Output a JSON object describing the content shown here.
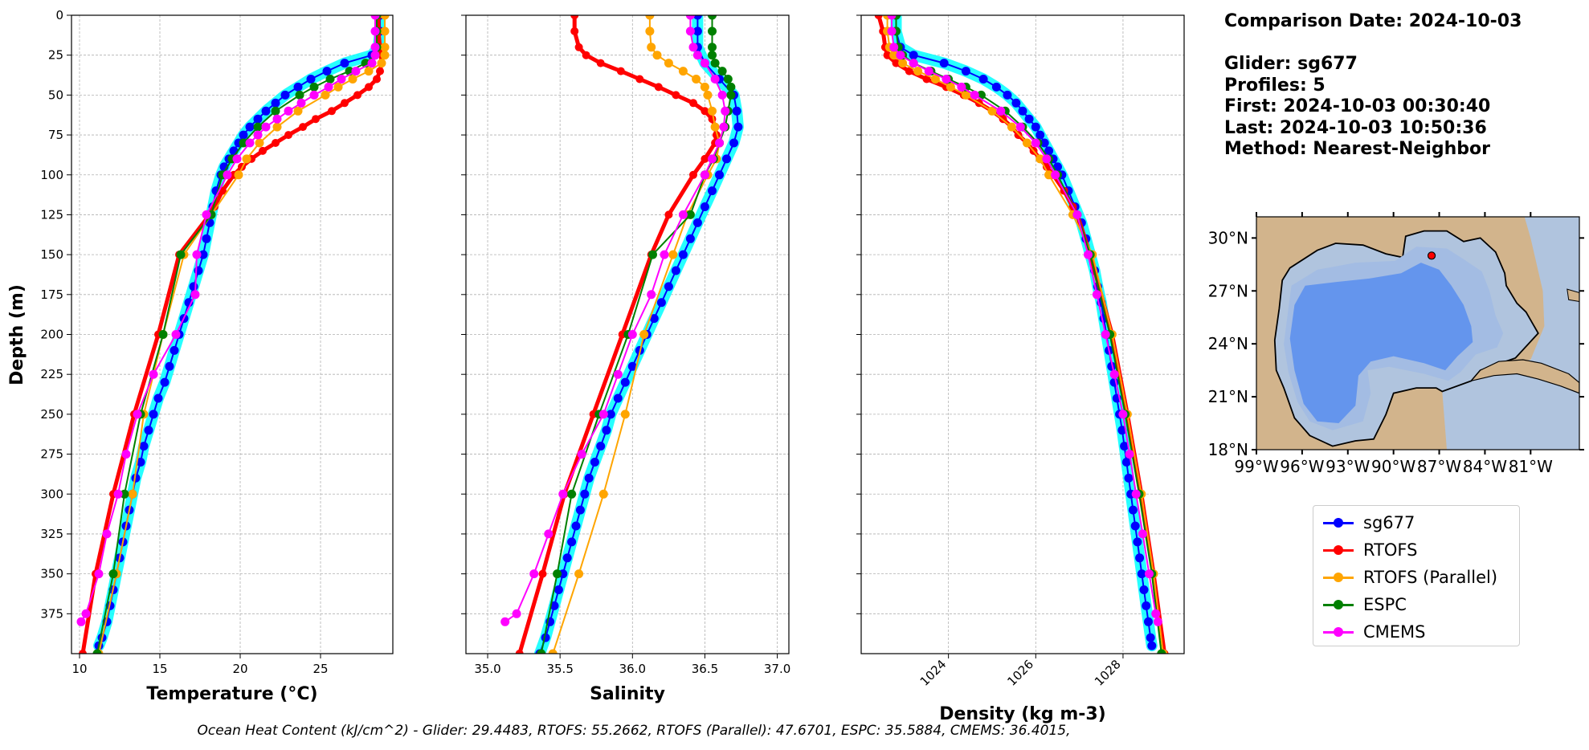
{
  "info": {
    "comparison_date": "Comparison Date: 2024-10-03",
    "glider": "Glider: sg677",
    "profiles": "Profiles: 5",
    "first": "First: 2024-10-03 00:30:40",
    "last": "Last: 2024-10-03 10:50:36",
    "method": "Method: Nearest-Neighbor"
  },
  "footer": {
    "ohc": "Ocean Heat Content (kJ/cm^2) - Glider: 29.4483,  RTOFS: 55.2662,  RTOFS (Parallel): 47.6701,  ESPC: 35.5884,  CMEMS: 36.4015,"
  },
  "legend": [
    {
      "label": "sg677",
      "color": "#0000ff"
    },
    {
      "label": "RTOFS",
      "color": "#ff0000"
    },
    {
      "label": "RTOFS (Parallel)",
      "color": "#ffa500"
    },
    {
      "label": "ESPC",
      "color": "#008000"
    },
    {
      "label": "CMEMS",
      "color": "#ff00ff"
    }
  ],
  "map": {
    "lat_labels": [
      "30°N",
      "27°N",
      "24°N",
      "21°N",
      "18°N"
    ],
    "lon_labels": [
      "99°W",
      "96°W",
      "93°W",
      "90°W",
      "87°W",
      "84°W",
      "81°W"
    ],
    "glider_position": {
      "lon": -87.5,
      "lat": 29.0
    },
    "colors": {
      "land": "#d2b48c",
      "shelf": "#b0c4de",
      "slope": "#a3bce3",
      "deep": "#6495ed"
    }
  },
  "chart_data": [
    {
      "type": "line",
      "xlabel": "Temperature (°C)",
      "ylabel": "Depth (m)",
      "xlim": [
        9.5,
        29.5
      ],
      "ylim": [
        400,
        0
      ],
      "xticks": [
        10,
        15,
        20,
        25
      ],
      "yticks": [
        0,
        25,
        50,
        75,
        100,
        125,
        150,
        175,
        200,
        225,
        250,
        275,
        300,
        325,
        350,
        375
      ],
      "grid": true,
      "series": [
        {
          "name": "sg677",
          "color": "#0000ff",
          "depth": [
            0,
            10,
            20,
            25,
            30,
            35,
            40,
            45,
            50,
            55,
            60,
            65,
            70,
            75,
            80,
            85,
            90,
            95,
            100,
            110,
            120,
            130,
            140,
            150,
            160,
            170,
            180,
            190,
            200,
            210,
            220,
            230,
            240,
            250,
            260,
            270,
            280,
            290,
            300,
            310,
            320,
            330,
            340,
            350,
            360,
            370,
            380,
            390,
            395
          ],
          "values": [
            28.7,
            28.7,
            28.6,
            28.2,
            26.5,
            25.4,
            24.4,
            23.6,
            22.8,
            22.2,
            21.6,
            21.1,
            20.6,
            20.2,
            19.9,
            19.6,
            19.3,
            19.0,
            18.8,
            18.5,
            18.3,
            18.1,
            17.9,
            17.7,
            17.4,
            17.1,
            16.8,
            16.5,
            16.2,
            15.9,
            15.6,
            15.3,
            14.9,
            14.6,
            14.3,
            14.0,
            13.8,
            13.5,
            13.3,
            13.1,
            12.9,
            12.7,
            12.5,
            12.3,
            12.1,
            11.9,
            11.7,
            11.4,
            11.2
          ]
        },
        {
          "name": "RTOFS",
          "color": "#ff0000",
          "depth": [
            0,
            10,
            20,
            30,
            35,
            40,
            45,
            50,
            55,
            60,
            65,
            70,
            75,
            80,
            85,
            90,
            95,
            100,
            110,
            120,
            125,
            150,
            200,
            250,
            300,
            350,
            400
          ],
          "values": [
            28.6,
            28.6,
            28.7,
            28.8,
            28.7,
            28.5,
            28.0,
            27.3,
            26.5,
            25.7,
            24.7,
            23.9,
            23.0,
            22.2,
            21.4,
            20.7,
            20.1,
            19.6,
            18.9,
            18.4,
            18.1,
            16.2,
            14.9,
            13.4,
            12.1,
            11.0,
            10.2
          ]
        },
        {
          "name": "RTOFS (Parallel)",
          "color": "#ffa500",
          "depth": [
            0,
            10,
            20,
            25,
            30,
            35,
            40,
            45,
            50,
            60,
            70,
            80,
            90,
            100,
            125,
            150,
            200,
            250,
            300,
            350,
            400
          ],
          "values": [
            29.0,
            29.0,
            29.0,
            29.0,
            28.8,
            28.0,
            27.0,
            26.1,
            25.3,
            23.6,
            22.3,
            21.2,
            20.4,
            19.9,
            18.2,
            16.5,
            15.2,
            14.0,
            13.3,
            12.3,
            11.2
          ]
        },
        {
          "name": "ESPC",
          "color": "#008000",
          "depth": [
            0,
            10,
            20,
            25,
            30,
            35,
            40,
            45,
            50,
            60,
            70,
            80,
            90,
            100,
            125,
            150,
            200,
            250,
            300,
            350,
            400
          ],
          "values": [
            28.5,
            28.5,
            28.5,
            28.4,
            27.8,
            26.8,
            25.6,
            24.6,
            23.7,
            22.2,
            21.1,
            20.2,
            19.5,
            18.9,
            18.2,
            16.3,
            15.2,
            13.8,
            12.8,
            12.1,
            11.1
          ]
        },
        {
          "name": "CMEMS",
          "color": "#ff00ff",
          "depth": [
            0,
            10,
            20,
            25,
            30,
            35,
            40,
            45,
            50,
            55,
            60,
            65,
            70,
            75,
            80,
            90,
            100,
            125,
            150,
            175,
            200,
            225,
            250,
            275,
            300,
            325,
            350,
            375,
            380
          ],
          "values": [
            28.4,
            28.4,
            28.4,
            28.4,
            28.2,
            27.2,
            26.3,
            25.5,
            24.6,
            23.8,
            23.0,
            22.3,
            21.6,
            21.1,
            20.6,
            19.8,
            19.2,
            17.9,
            17.3,
            17.2,
            16.0,
            14.6,
            13.6,
            12.9,
            12.4,
            11.7,
            11.2,
            10.4,
            10.1
          ]
        }
      ]
    },
    {
      "type": "line",
      "xlabel": "Salinity",
      "xlim": [
        34.85,
        37.08
      ],
      "ylim": [
        400,
        0
      ],
      "xticks": [
        35.0,
        35.5,
        36.0,
        36.5,
        37.0
      ],
      "grid": true,
      "series": [
        {
          "name": "sg677",
          "color": "#0000ff",
          "depth": [
            0,
            10,
            20,
            30,
            40,
            50,
            60,
            70,
            80,
            90,
            100,
            110,
            120,
            130,
            140,
            150,
            160,
            170,
            180,
            190,
            200,
            210,
            220,
            230,
            240,
            250,
            260,
            270,
            280,
            290,
            300,
            310,
            320,
            330,
            340,
            350,
            360,
            370,
            380,
            390,
            400
          ],
          "values": [
            36.45,
            36.45,
            36.45,
            36.5,
            36.6,
            36.7,
            36.72,
            36.73,
            36.7,
            36.65,
            36.6,
            36.55,
            36.5,
            36.45,
            36.4,
            36.35,
            36.3,
            36.25,
            36.2,
            36.15,
            36.1,
            36.05,
            36.0,
            35.95,
            35.9,
            35.85,
            35.82,
            35.78,
            35.74,
            35.7,
            35.67,
            35.64,
            35.61,
            35.58,
            35.55,
            35.52,
            35.49,
            35.46,
            35.43,
            35.4,
            35.36
          ]
        },
        {
          "name": "RTOFS",
          "color": "#ff0000",
          "depth": [
            0,
            10,
            20,
            25,
            30,
            35,
            40,
            45,
            50,
            55,
            60,
            65,
            70,
            75,
            80,
            90,
            100,
            125,
            150,
            200,
            250,
            300,
            350,
            400
          ],
          "values": [
            35.6,
            35.6,
            35.63,
            35.68,
            35.78,
            35.92,
            36.05,
            36.18,
            36.3,
            36.42,
            36.5,
            36.55,
            36.57,
            36.58,
            36.57,
            36.5,
            36.42,
            36.25,
            36.13,
            35.93,
            35.73,
            35.53,
            35.38,
            35.22
          ]
        },
        {
          "name": "RTOFS (Parallel)",
          "color": "#ffa500",
          "depth": [
            0,
            10,
            20,
            25,
            30,
            35,
            40,
            45,
            50,
            60,
            70,
            80,
            90,
            100,
            125,
            150,
            200,
            250,
            300,
            350,
            400
          ],
          "values": [
            36.12,
            36.12,
            36.13,
            36.17,
            36.25,
            36.35,
            36.44,
            36.5,
            36.52,
            36.55,
            36.57,
            36.6,
            36.58,
            36.52,
            36.38,
            36.28,
            36.08,
            35.95,
            35.8,
            35.63,
            35.45
          ]
        },
        {
          "name": "ESPC",
          "color": "#008000",
          "depth": [
            0,
            10,
            20,
            25,
            30,
            35,
            40,
            45,
            50,
            60,
            70,
            80,
            90,
            100,
            125,
            150,
            200,
            250,
            300,
            350,
            400
          ],
          "values": [
            36.55,
            36.55,
            36.55,
            36.55,
            36.57,
            36.62,
            36.66,
            36.68,
            36.68,
            36.66,
            36.64,
            36.6,
            36.56,
            36.5,
            36.4,
            36.14,
            35.97,
            35.77,
            35.58,
            35.48,
            35.37
          ]
        },
        {
          "name": "CMEMS",
          "color": "#ff00ff",
          "depth": [
            0,
            10,
            20,
            25,
            30,
            40,
            50,
            60,
            70,
            80,
            90,
            100,
            125,
            150,
            175,
            200,
            225,
            250,
            275,
            300,
            325,
            350,
            375,
            380
          ],
          "values": [
            36.4,
            36.4,
            36.42,
            36.45,
            36.5,
            36.57,
            36.62,
            36.64,
            36.63,
            36.6,
            36.55,
            36.5,
            36.35,
            36.22,
            36.13,
            36.0,
            35.9,
            35.8,
            35.65,
            35.52,
            35.42,
            35.32,
            35.2,
            35.12
          ]
        }
      ]
    },
    {
      "type": "line",
      "xlabel": "Density (kg m-3)",
      "xlim": [
        1022.0,
        1029.4
      ],
      "ylim": [
        400,
        0
      ],
      "xticks": [
        1024,
        1026,
        1028
      ],
      "grid": true,
      "series": [
        {
          "name": "sg677",
          "color": "#0000ff",
          "depth": [
            0,
            10,
            20,
            25,
            30,
            35,
            40,
            45,
            50,
            55,
            60,
            65,
            70,
            75,
            80,
            85,
            90,
            95,
            100,
            110,
            120,
            130,
            140,
            150,
            160,
            170,
            180,
            190,
            200,
            210,
            220,
            230,
            240,
            250,
            260,
            270,
            280,
            290,
            300,
            310,
            320,
            330,
            340,
            350,
            360,
            370,
            380,
            390,
            395
          ],
          "values": [
            1022.8,
            1022.8,
            1022.9,
            1023.2,
            1023.9,
            1024.4,
            1024.8,
            1025.1,
            1025.35,
            1025.55,
            1025.7,
            1025.85,
            1026.0,
            1026.1,
            1026.2,
            1026.3,
            1026.4,
            1026.5,
            1026.6,
            1026.75,
            1026.9,
            1027.05,
            1027.15,
            1027.25,
            1027.35,
            1027.42,
            1027.5,
            1027.56,
            1027.62,
            1027.68,
            1027.74,
            1027.8,
            1027.86,
            1027.92,
            1027.98,
            1028.03,
            1028.08,
            1028.13,
            1028.18,
            1028.23,
            1028.28,
            1028.33,
            1028.38,
            1028.43,
            1028.48,
            1028.53,
            1028.58,
            1028.63,
            1028.66
          ]
        },
        {
          "name": "RTOFS",
          "color": "#ff0000",
          "depth": [
            0,
            10,
            20,
            25,
            30,
            35,
            40,
            45,
            50,
            55,
            60,
            65,
            70,
            75,
            80,
            85,
            90,
            95,
            100,
            110,
            120,
            125,
            150,
            200,
            250,
            300,
            350,
            400
          ],
          "values": [
            1022.4,
            1022.5,
            1022.55,
            1022.6,
            1022.8,
            1023.1,
            1023.5,
            1023.95,
            1024.35,
            1024.7,
            1025.0,
            1025.25,
            1025.45,
            1025.6,
            1025.8,
            1025.95,
            1026.1,
            1026.25,
            1026.4,
            1026.65,
            1026.85,
            1026.95,
            1027.25,
            1027.75,
            1028.1,
            1028.42,
            1028.7,
            1028.95
          ]
        },
        {
          "name": "RTOFS (Parallel)",
          "color": "#ffa500",
          "depth": [
            0,
            10,
            20,
            25,
            30,
            35,
            40,
            45,
            50,
            60,
            70,
            80,
            90,
            100,
            125,
            150,
            200,
            250,
            300,
            350,
            400
          ],
          "values": [
            1022.6,
            1022.6,
            1022.65,
            1022.75,
            1022.95,
            1023.3,
            1023.7,
            1024.05,
            1024.4,
            1025.0,
            1025.45,
            1025.8,
            1026.1,
            1026.3,
            1026.85,
            1027.3,
            1027.75,
            1028.1,
            1028.42,
            1028.7,
            1028.92
          ]
        },
        {
          "name": "ESPC",
          "color": "#008000",
          "depth": [
            0,
            10,
            20,
            25,
            30,
            35,
            40,
            45,
            50,
            60,
            70,
            80,
            90,
            100,
            125,
            150,
            200,
            250,
            300,
            350,
            400
          ],
          "values": [
            1022.8,
            1022.8,
            1022.85,
            1022.95,
            1023.2,
            1023.6,
            1024.0,
            1024.4,
            1024.75,
            1025.3,
            1025.7,
            1026.05,
            1026.3,
            1026.5,
            1026.95,
            1027.25,
            1027.7,
            1028.05,
            1028.37,
            1028.66,
            1028.88
          ]
        },
        {
          "name": "CMEMS",
          "color": "#ff00ff",
          "depth": [
            0,
            10,
            20,
            25,
            30,
            35,
            40,
            45,
            50,
            60,
            70,
            80,
            90,
            100,
            125,
            150,
            175,
            200,
            225,
            250,
            275,
            300,
            325,
            350,
            375,
            380
          ],
          "values": [
            1022.7,
            1022.7,
            1022.75,
            1022.9,
            1023.2,
            1023.55,
            1023.95,
            1024.3,
            1024.6,
            1025.2,
            1025.65,
            1026.0,
            1026.25,
            1026.45,
            1026.95,
            1027.2,
            1027.4,
            1027.6,
            1027.8,
            1028.0,
            1028.15,
            1028.3,
            1028.45,
            1028.6,
            1028.75,
            1028.8
          ]
        }
      ]
    }
  ]
}
